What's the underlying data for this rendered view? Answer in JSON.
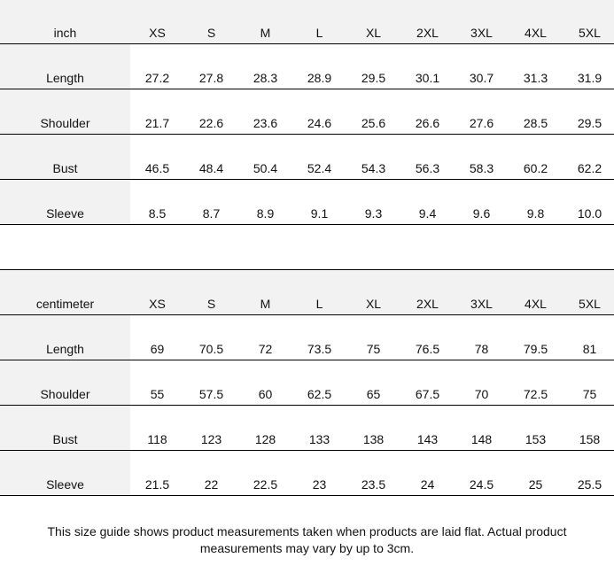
{
  "sizes": [
    "XS",
    "S",
    "M",
    "L",
    "XL",
    "2XL",
    "3XL",
    "4XL",
    "5XL"
  ],
  "tables": [
    {
      "unit": "inch",
      "rows": [
        {
          "label": "Length",
          "values": [
            "27.2",
            "27.8",
            "28.3",
            "28.9",
            "29.5",
            "30.1",
            "30.7",
            "31.3",
            "31.9"
          ]
        },
        {
          "label": "Shoulder",
          "values": [
            "21.7",
            "22.6",
            "23.6",
            "24.6",
            "25.6",
            "26.6",
            "27.6",
            "28.5",
            "29.5"
          ]
        },
        {
          "label": "Bust",
          "values": [
            "46.5",
            "48.4",
            "50.4",
            "52.4",
            "54.3",
            "56.3",
            "58.3",
            "60.2",
            "62.2"
          ]
        },
        {
          "label": "Sleeve",
          "values": [
            "8.5",
            "8.7",
            "8.9",
            "9.1",
            "9.3",
            "9.4",
            "9.6",
            "9.8",
            "10.0"
          ]
        }
      ]
    },
    {
      "unit": "centimeter",
      "rows": [
        {
          "label": "Length",
          "values": [
            "69",
            "70.5",
            "72",
            "73.5",
            "75",
            "76.5",
            "78",
            "79.5",
            "81"
          ]
        },
        {
          "label": "Shoulder",
          "values": [
            "55",
            "57.5",
            "60",
            "62.5",
            "65",
            "67.5",
            "70",
            "72.5",
            "75"
          ]
        },
        {
          "label": "Bust",
          "values": [
            "118",
            "123",
            "128",
            "133",
            "138",
            "143",
            "148",
            "153",
            "158"
          ]
        },
        {
          "label": "Sleeve",
          "values": [
            "21.5",
            "22",
            "22.5",
            "23",
            "23.5",
            "24",
            "24.5",
            "25",
            "25.5"
          ]
        }
      ]
    }
  ],
  "note": {
    "line1": "This size guide shows product measurements taken when products are laid flat. Actual product",
    "line2": "measurements may vary by up to 3cm."
  }
}
